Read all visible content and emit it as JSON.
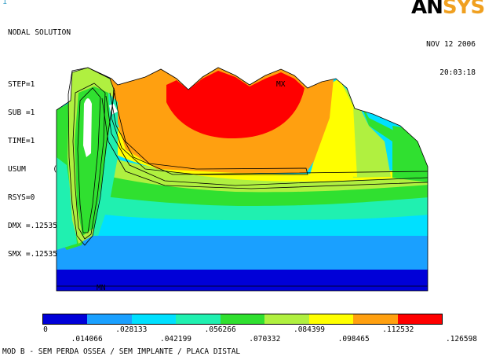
{
  "window_number": "1",
  "info": {
    "title": "NODAL SOLUTION",
    "step": "STEP=1",
    "sub": "SUB =1",
    "time": "TIME=1",
    "usum": "USUM      (AVG)",
    "rsys": "RSYS=0",
    "dmx": "DMX =.125354",
    "smx": "SMX =.125354"
  },
  "logo": {
    "an": "AN",
    "sys": "SYS"
  },
  "datetime": {
    "date": "NOV 12 2006",
    "time": "20:03:18"
  },
  "markers": {
    "max": "MX",
    "min": "MN"
  },
  "legend": {
    "colors": [
      "#0000d8",
      "#1aa0ff",
      "#00e0ff",
      "#20f0b0",
      "#30e030",
      "#b0f040",
      "#ffff00",
      "#ffa010",
      "#ff0000"
    ],
    "labels_top": [
      "0",
      ".028133",
      ".056266",
      ".084399",
      ".112532"
    ],
    "labels_bottom": [
      ".014066",
      ".042199",
      ".070332",
      ".098465",
      ".126598"
    ]
  },
  "caption": "MOD B - SEM PERDA OSSEA / SEM IMPLANTE / PLACA DISTAL"
}
